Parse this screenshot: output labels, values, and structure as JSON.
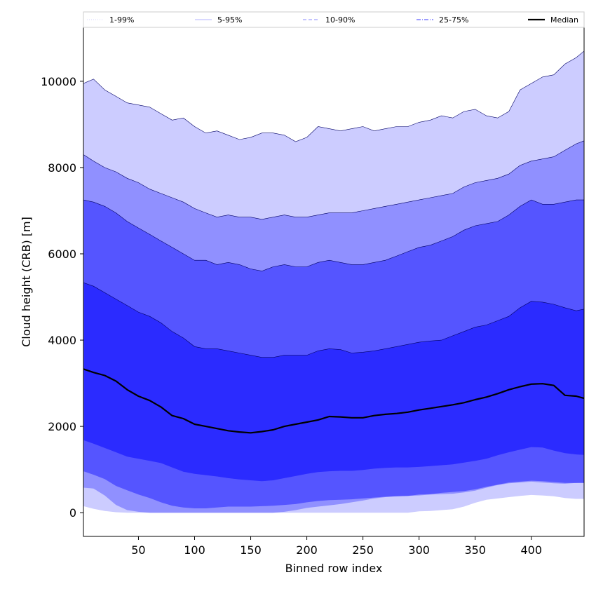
{
  "chart_data": {
    "type": "area",
    "xlabel": "Binned row index",
    "ylabel": "Cloud height (CRB) [m]",
    "xlim": [
      1,
      447
    ],
    "ylim": [
      -550,
      11250
    ],
    "xticks": [
      50,
      100,
      150,
      200,
      250,
      300,
      350,
      400
    ],
    "yticks": [
      0,
      2000,
      4000,
      6000,
      8000,
      10000
    ],
    "legend_position": "top",
    "legend": [
      {
        "label": "1-99%",
        "style": "dotted",
        "color": "#d4d4ff"
      },
      {
        "label": "5-95%",
        "style": "solid-thin",
        "color": "#9a9aff"
      },
      {
        "label": "10-90%",
        "style": "dashed",
        "color": "#8a8aff"
      },
      {
        "label": "25-75%",
        "style": "dashdot",
        "color": "#6060ff"
      },
      {
        "label": "Median",
        "style": "solid-thick",
        "color": "#000000"
      }
    ],
    "x": [
      1,
      10,
      20,
      30,
      40,
      50,
      60,
      70,
      80,
      90,
      100,
      110,
      120,
      130,
      140,
      150,
      160,
      170,
      180,
      190,
      200,
      210,
      220,
      230,
      240,
      250,
      260,
      270,
      280,
      290,
      300,
      310,
      320,
      330,
      340,
      350,
      360,
      370,
      380,
      390,
      400,
      410,
      420,
      430,
      440,
      447
    ],
    "bands": [
      {
        "name": "1-99%",
        "color": "#ccccff",
        "lower": [
          150,
          90,
          40,
          10,
          0,
          0,
          0,
          0,
          0,
          0,
          0,
          0,
          0,
          0,
          0,
          0,
          0,
          0,
          0,
          0,
          0,
          0,
          0,
          0,
          0,
          0,
          0,
          0,
          0,
          0,
          30,
          40,
          60,
          80,
          140,
          230,
          300,
          330,
          360,
          390,
          410,
          400,
          380,
          340,
          320,
          320
        ],
        "upper": [
          9950,
          10050,
          9800,
          9650,
          9500,
          9450,
          9400,
          9250,
          9100,
          9150,
          8950,
          8800,
          8850,
          8750,
          8650,
          8700,
          8800,
          8800,
          8750,
          8600,
          8700,
          8950,
          8900,
          8850,
          8900,
          8950,
          8850,
          8900,
          8950,
          8950,
          9050,
          9100,
          9200,
          9150,
          9300,
          9350,
          9200,
          9150,
          9300,
          9800,
          9950,
          10100,
          10150,
          10400,
          10550,
          10700
        ]
      },
      {
        "name": "5-95%",
        "color": "#9090ff",
        "lower": [
          580,
          560,
          400,
          180,
          60,
          20,
          0,
          0,
          0,
          0,
          0,
          0,
          0,
          0,
          0,
          0,
          0,
          0,
          20,
          60,
          110,
          140,
          170,
          200,
          240,
          280,
          330,
          360,
          380,
          390,
          400,
          420,
          430,
          440,
          470,
          510,
          580,
          640,
          680,
          700,
          720,
          700,
          680,
          670,
          690,
          700
        ],
        "upper": [
          8300,
          8150,
          8000,
          7900,
          7750,
          7650,
          7500,
          7400,
          7300,
          7200,
          7050,
          6950,
          6850,
          6900,
          6850,
          6850,
          6800,
          6850,
          6900,
          6850,
          6850,
          6900,
          6950,
          6950,
          6950,
          7000,
          7050,
          7100,
          7150,
          7200,
          7250,
          7300,
          7350,
          7400,
          7550,
          7650,
          7700,
          7750,
          7850,
          8050,
          8150,
          8200,
          8250,
          8400,
          8550,
          8620
        ]
      },
      {
        "name": "10-90%",
        "color": "#5555ff",
        "lower": [
          960,
          880,
          780,
          620,
          520,
          420,
          340,
          240,
          160,
          120,
          100,
          100,
          120,
          140,
          140,
          140,
          150,
          160,
          180,
          200,
          240,
          270,
          290,
          300,
          310,
          330,
          350,
          370,
          380,
          390,
          420,
          430,
          460,
          480,
          500,
          540,
          600,
          650,
          700,
          720,
          740,
          730,
          710,
          690,
          690,
          690
        ],
        "upper": [
          7250,
          7200,
          7100,
          6950,
          6750,
          6600,
          6450,
          6300,
          6150,
          6000,
          5850,
          5850,
          5750,
          5800,
          5750,
          5650,
          5600,
          5700,
          5750,
          5700,
          5700,
          5800,
          5850,
          5800,
          5750,
          5750,
          5800,
          5850,
          5950,
          6050,
          6150,
          6200,
          6300,
          6400,
          6550,
          6650,
          6700,
          6750,
          6900,
          7100,
          7250,
          7150,
          7150,
          7200,
          7250,
          7250
        ]
      },
      {
        "name": "25-75%",
        "color": "#2b2bff",
        "lower": [
          1680,
          1600,
          1500,
          1400,
          1300,
          1250,
          1200,
          1150,
          1050,
          950,
          900,
          870,
          840,
          800,
          770,
          750,
          730,
          750,
          800,
          850,
          900,
          940,
          960,
          970,
          970,
          990,
          1020,
          1040,
          1050,
          1050,
          1060,
          1080,
          1100,
          1120,
          1160,
          1200,
          1250,
          1330,
          1400,
          1460,
          1520,
          1510,
          1440,
          1380,
          1350,
          1340
        ],
        "upper": [
          5330,
          5250,
          5100,
          4950,
          4800,
          4650,
          4550,
          4400,
          4200,
          4050,
          3850,
          3800,
          3800,
          3750,
          3700,
          3650,
          3600,
          3600,
          3650,
          3650,
          3650,
          3750,
          3800,
          3780,
          3700,
          3720,
          3750,
          3800,
          3850,
          3900,
          3950,
          3980,
          4000,
          4100,
          4200,
          4300,
          4350,
          4450,
          4550,
          4750,
          4900,
          4880,
          4830,
          4750,
          4680,
          4720
        ]
      }
    ],
    "series": [
      {
        "name": "Median",
        "color": "#000000",
        "values": [
          3330,
          3250,
          3180,
          3050,
          2850,
          2700,
          2600,
          2450,
          2250,
          2180,
          2050,
          2000,
          1950,
          1900,
          1870,
          1850,
          1880,
          1920,
          2000,
          2050,
          2100,
          2150,
          2230,
          2220,
          2200,
          2200,
          2250,
          2280,
          2300,
          2330,
          2380,
          2420,
          2460,
          2500,
          2550,
          2620,
          2680,
          2760,
          2850,
          2920,
          2980,
          2990,
          2950,
          2720,
          2700,
          2650
        ]
      }
    ]
  }
}
